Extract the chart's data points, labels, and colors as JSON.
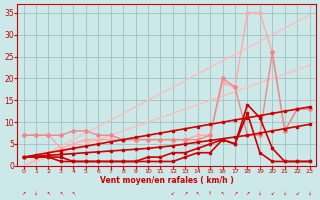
{
  "background_color": "#cce8e8",
  "grid_color": "#99bbbb",
  "xlabel": "Vent moyen/en rafales ( km/h )",
  "xlabel_color": "#cc0000",
  "tick_color": "#cc0000",
  "axis_color": "#cc0000",
  "x_ticks": [
    0,
    1,
    2,
    3,
    4,
    5,
    6,
    7,
    8,
    9,
    10,
    11,
    12,
    13,
    14,
    15,
    16,
    17,
    18,
    19,
    20,
    21,
    22,
    23
  ],
  "y_ticks": [
    0,
    5,
    10,
    15,
    20,
    25,
    30,
    35
  ],
  "xlim_min": -0.5,
  "xlim_max": 23.5,
  "ylim_min": 0,
  "ylim_max": 37,
  "lines": [
    {
      "x": [
        0,
        1,
        2,
        3,
        4,
        5,
        6,
        7,
        8,
        9,
        10,
        11,
        12,
        13,
        14,
        15,
        16,
        17,
        18,
        19,
        20,
        21,
        22,
        23
      ],
      "y": [
        0,
        1.5,
        3,
        4.5,
        6,
        7.5,
        9,
        10.5,
        12,
        13.5,
        15,
        16.5,
        18,
        19.5,
        21,
        22.5,
        24,
        25.5,
        27,
        28.5,
        30,
        31.5,
        33,
        34.5
      ],
      "color": "#ffbbbb",
      "lw": 1.0,
      "marker": null,
      "ms": 0
    },
    {
      "x": [
        0,
        1,
        2,
        3,
        4,
        5,
        6,
        7,
        8,
        9,
        10,
        11,
        12,
        13,
        14,
        15,
        16,
        17,
        18,
        19,
        20,
        21,
        22,
        23
      ],
      "y": [
        0,
        1,
        2,
        3,
        4,
        5,
        6,
        7,
        8,
        9,
        10,
        11,
        12,
        13,
        14,
        15,
        16,
        17,
        18,
        19,
        20,
        21,
        22,
        23
      ],
      "color": "#ffbbbb",
      "lw": 1.0,
      "marker": null,
      "ms": 0
    },
    {
      "x": [
        0,
        1,
        2,
        3,
        4,
        5,
        6,
        7,
        8,
        9,
        10,
        11,
        12,
        13,
        14,
        15,
        16,
        17,
        18,
        19,
        20,
        21,
        22,
        23
      ],
      "y": [
        7,
        7,
        7,
        4,
        5,
        6,
        6,
        6,
        6,
        6,
        6,
        6,
        6,
        6,
        7,
        7,
        19,
        18,
        35,
        35,
        26,
        8,
        13,
        13
      ],
      "color": "#ffaaaa",
      "lw": 1.0,
      "marker": "D",
      "ms": 2.0
    },
    {
      "x": [
        0,
        1,
        2,
        3,
        4,
        5,
        6,
        7,
        8,
        9,
        10,
        11,
        12,
        13,
        14,
        15,
        16,
        17,
        18,
        19,
        20,
        21,
        22,
        23
      ],
      "y": [
        7,
        7,
        7,
        7,
        8,
        8,
        7,
        7,
        6,
        6,
        6,
        6,
        6,
        6,
        6,
        7,
        20,
        18,
        7,
        7,
        26,
        8,
        13,
        13
      ],
      "color": "#ee8888",
      "lw": 1.0,
      "marker": "D",
      "ms": 2.0
    },
    {
      "x": [
        0,
        1,
        2,
        3,
        4,
        5,
        6,
        7,
        8,
        9,
        10,
        11,
        12,
        13,
        14,
        15,
        16,
        17,
        18,
        19,
        20,
        21,
        22,
        23
      ],
      "y": [
        2,
        2.5,
        3,
        3.5,
        4,
        4.5,
        5,
        5.5,
        6,
        6.5,
        7,
        7.5,
        8,
        8.5,
        9,
        9.5,
        10,
        10.5,
        11,
        11.5,
        12,
        12.5,
        13,
        13.5
      ],
      "color": "#cc0000",
      "lw": 1.2,
      "marker": "s",
      "ms": 2.0
    },
    {
      "x": [
        0,
        1,
        2,
        3,
        4,
        5,
        6,
        7,
        8,
        9,
        10,
        11,
        12,
        13,
        14,
        15,
        16,
        17,
        18,
        19,
        20,
        21,
        22,
        23
      ],
      "y": [
        2,
        2.2,
        2.4,
        2.6,
        2.8,
        3.0,
        3.2,
        3.4,
        3.6,
        3.8,
        4.0,
        4.3,
        4.6,
        5,
        5.4,
        5.8,
        6.2,
        6.6,
        7,
        7.5,
        8,
        8.5,
        9,
        9.5
      ],
      "color": "#cc0000",
      "lw": 1.2,
      "marker": "s",
      "ms": 2.0
    },
    {
      "x": [
        0,
        1,
        2,
        3,
        4,
        5,
        6,
        7,
        8,
        9,
        10,
        11,
        12,
        13,
        14,
        15,
        16,
        17,
        18,
        19,
        20,
        21,
        22,
        23
      ],
      "y": [
        2,
        2,
        2,
        2,
        1,
        1,
        1,
        1,
        1,
        1,
        2,
        2,
        3,
        3,
        4,
        5,
        6,
        5,
        12,
        3,
        1,
        1,
        1,
        1
      ],
      "color": "#cc0000",
      "lw": 1.2,
      "marker": "s",
      "ms": 2.0
    },
    {
      "x": [
        0,
        1,
        2,
        3,
        4,
        5,
        6,
        7,
        8,
        9,
        10,
        11,
        12,
        13,
        14,
        15,
        16,
        17,
        18,
        19,
        20,
        21,
        22,
        23
      ],
      "y": [
        2,
        2,
        2,
        1,
        1,
        1,
        1,
        1,
        1,
        1,
        1,
        1,
        1,
        2,
        3,
        3,
        6,
        5,
        14,
        11,
        4,
        1,
        1,
        1
      ],
      "color": "#cc0000",
      "lw": 1.2,
      "marker": "s",
      "ms": 2.0
    }
  ]
}
